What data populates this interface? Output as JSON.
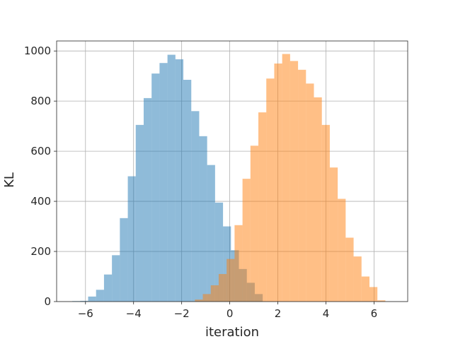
{
  "chart_data": {
    "type": "bar",
    "title": "",
    "xlabel": "iteration",
    "ylabel": "KL",
    "xlim": [
      -7.2,
      7.4
    ],
    "ylim": [
      0,
      1040
    ],
    "grid": true,
    "xticks": [
      -6,
      -4,
      -2,
      0,
      2,
      4,
      6
    ],
    "xtick_labels": [
      "−6",
      "−4",
      "−2",
      "0",
      "2",
      "4",
      "6"
    ],
    "yticks": [
      0,
      200,
      400,
      600,
      800,
      1000
    ],
    "ytick_labels": [
      "0",
      "200",
      "400",
      "600",
      "800",
      "1000"
    ],
    "series": [
      {
        "color": "#1f77b4",
        "opacity": 0.5,
        "bin_edges": [
          -6.55,
          -6.22,
          -5.89,
          -5.56,
          -5.23,
          -4.9,
          -4.57,
          -4.24,
          -3.91,
          -3.58,
          -3.25,
          -2.92,
          -2.59,
          -2.26,
          -1.93,
          -1.6,
          -1.27,
          -0.94,
          -0.61,
          -0.28,
          0.05,
          0.38,
          0.71,
          1.04,
          1.37
        ],
        "counts": [
          2,
          3,
          20,
          47,
          108,
          185,
          333,
          500,
          705,
          812,
          910,
          952,
          985,
          967,
          885,
          760,
          660,
          545,
          395,
          300,
          205,
          130,
          75,
          30
        ]
      },
      {
        "color": "#ff7f0e",
        "opacity": 0.5,
        "bin_edges": [
          -1.45,
          -1.12,
          -0.79,
          -0.46,
          -0.13,
          0.2,
          0.53,
          0.86,
          1.19,
          1.52,
          1.85,
          2.18,
          2.51,
          2.84,
          3.17,
          3.5,
          3.83,
          4.16,
          4.49,
          4.82,
          5.15,
          5.48,
          5.81,
          6.14,
          6.47
        ],
        "counts": [
          8,
          30,
          65,
          110,
          170,
          305,
          490,
          622,
          755,
          890,
          950,
          988,
          960,
          925,
          870,
          815,
          705,
          535,
          410,
          255,
          180,
          100,
          58,
          5
        ]
      }
    ]
  }
}
